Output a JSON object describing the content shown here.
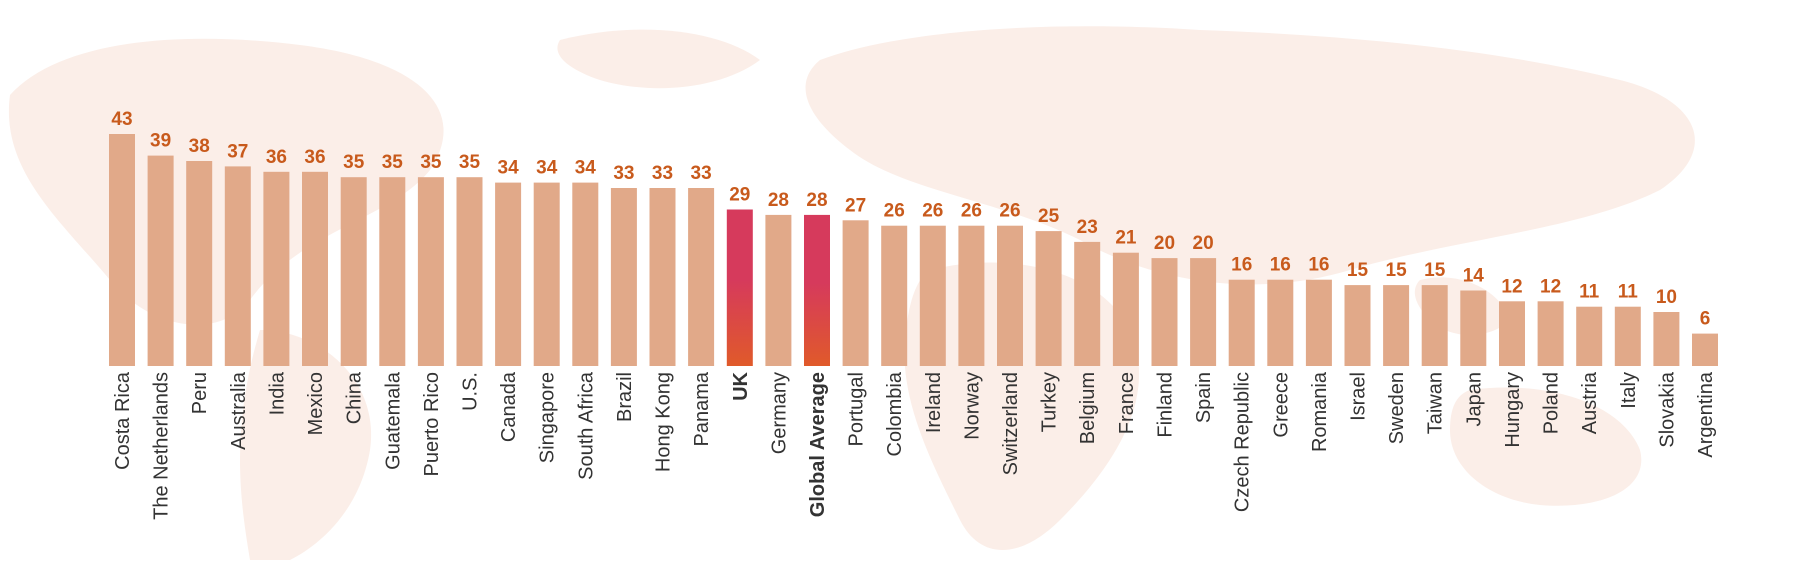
{
  "colors": {
    "bar": "#e1a989",
    "highlight_bar_top": "#d63a5c",
    "highlight_bar_bottom": "#e05a2a",
    "value_label": "#c85a1c",
    "category_label": "#333333",
    "map_background": "#fbeee8"
  },
  "chart_data": {
    "type": "bar",
    "title": "",
    "xlabel": "",
    "ylabel": "",
    "ylim": [
      0,
      43
    ],
    "grid": false,
    "legend": "none",
    "categories": [
      "Costa Rica",
      "The Netherlands",
      "Peru",
      "Australia",
      "India",
      "Mexico",
      "China",
      "Guatemala",
      "Puerto Rico",
      "U.S.",
      "Canada",
      "Singapore",
      "South Africa",
      "Brazil",
      "Hong Kong",
      "Panama",
      "UK",
      "Germany",
      "Global Average",
      "Portugal",
      "Colombia",
      "Ireland",
      "Norway",
      "Switzerland",
      "Turkey",
      "Belgium",
      "France",
      "Finland",
      "Spain",
      "Czech Republic",
      "Greece",
      "Romania",
      "Israel",
      "Sweden",
      "Taiwan",
      "Japan",
      "Hungary",
      "Poland",
      "Austria",
      "Italy",
      "Slovakia",
      "Argentina"
    ],
    "values": [
      43,
      39,
      38,
      37,
      36,
      36,
      35,
      35,
      35,
      35,
      34,
      34,
      34,
      33,
      33,
      33,
      29,
      28,
      28,
      27,
      26,
      26,
      26,
      26,
      25,
      23,
      21,
      20,
      20,
      16,
      16,
      16,
      15,
      15,
      15,
      14,
      12,
      12,
      11,
      11,
      10,
      6
    ],
    "highlighted": [
      "UK",
      "Global Average"
    ],
    "bold_categories": [
      "UK",
      "Global Average"
    ]
  }
}
